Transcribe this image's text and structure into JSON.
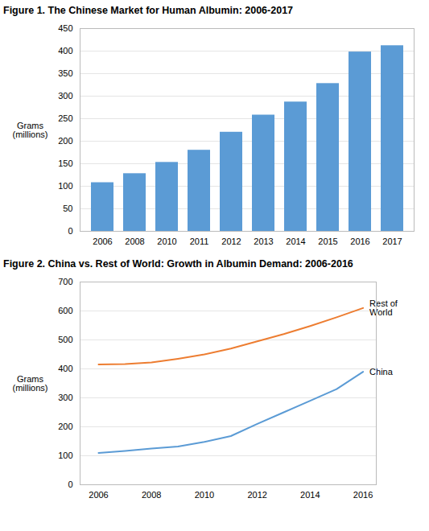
{
  "chart_data": [
    {
      "type": "bar",
      "title": "Figure 1. The Chinese Market for Human Albumin: 2006-2017",
      "categories": [
        "2006",
        "2008",
        "2010",
        "2011",
        "2012",
        "2013",
        "2014",
        "2015",
        "2016",
        "2017"
      ],
      "values": [
        108,
        128,
        153,
        180,
        220,
        258,
        287,
        328,
        398,
        412
      ],
      "color": "#5B9BD5",
      "y_label": "Grams\n(millions)",
      "ylim": [
        0,
        450
      ],
      "yticks": [
        0,
        50,
        100,
        150,
        200,
        250,
        300,
        350,
        400,
        450
      ],
      "grid": true
    },
    {
      "type": "line",
      "title": "Figure 2. China vs. Rest of World: Growth in Albumin Demand: 2006-2016",
      "x": [
        2006,
        2007,
        2008,
        2009,
        2010,
        2011,
        2012,
        2013,
        2014,
        2015,
        2016
      ],
      "series": [
        {
          "name": "China",
          "color": "#5B9BD5",
          "values": [
            110,
            117,
            125,
            132,
            148,
            168,
            210,
            250,
            290,
            330,
            390
          ]
        },
        {
          "name": "Rest of\nWorld",
          "color": "#ED7D31",
          "values": [
            415,
            417,
            422,
            435,
            450,
            470,
            495,
            520,
            548,
            578,
            610
          ]
        }
      ],
      "y_label": "Grams\n(millions)",
      "xlim": [
        2005.3,
        2016.5
      ],
      "xticks": [
        2006,
        2008,
        2010,
        2012,
        2014,
        2016
      ],
      "ylim": [
        0,
        700
      ],
      "yticks": [
        0,
        100,
        200,
        300,
        400,
        500,
        600,
        700
      ],
      "grid": true
    }
  ]
}
